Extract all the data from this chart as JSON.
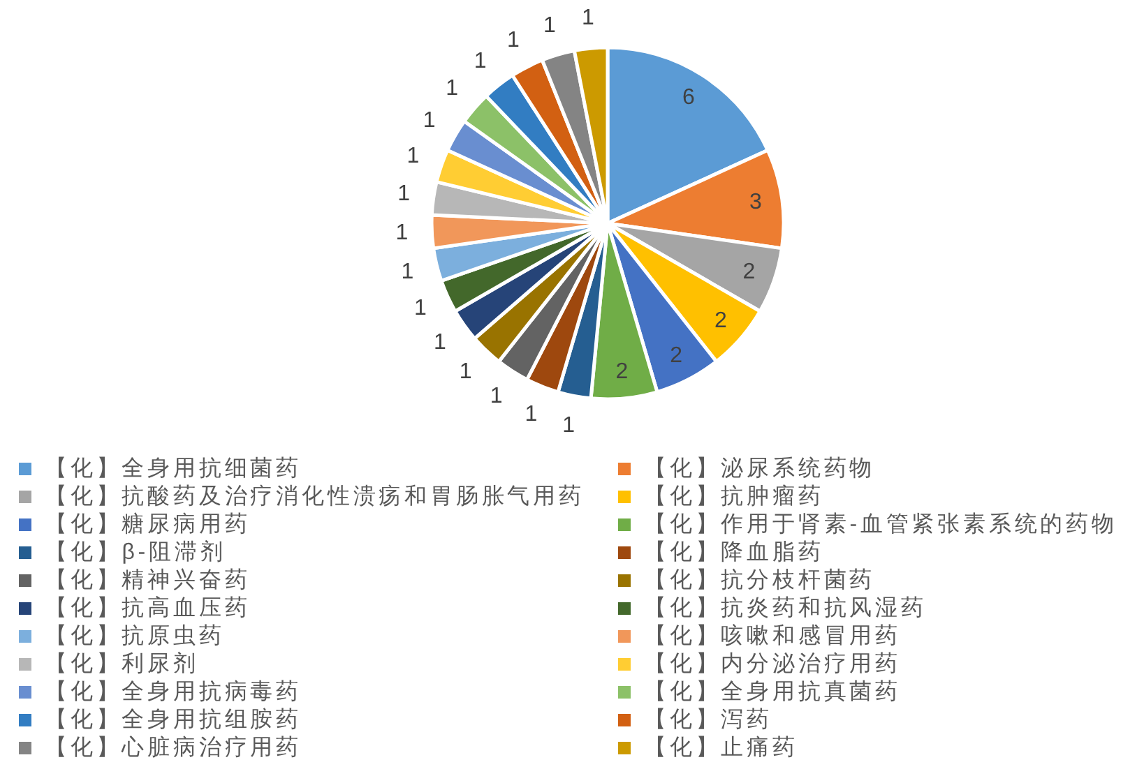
{
  "chart_data": {
    "type": "pie",
    "categories": [
      "【化】全身用抗细菌药",
      "【化】泌尿系统药物",
      "【化】抗酸药及治疗消化性溃疡和胃肠胀气用药",
      "【化】抗肿瘤药",
      "【化】糖尿病用药",
      "【化】作用于肾素-血管紧张素系统的药物",
      "【化】β-阻滞剂",
      "【化】降血脂药",
      "【化】精神兴奋药",
      "【化】抗分枝杆菌药",
      "【化】抗高血压药",
      "【化】抗炎药和抗风湿药",
      "【化】抗原虫药",
      "【化】咳嗽和感冒用药",
      "【化】利尿剂",
      "【化】内分泌治疗用药",
      "【化】全身用抗病毒药",
      "【化】全身用抗真菌药",
      "【化】全身用抗组胺药",
      "【化】泻药",
      "【化】心脏病治疗用药",
      "【化】止痛药"
    ],
    "values": [
      6,
      3,
      2,
      2,
      2,
      2,
      1,
      1,
      1,
      1,
      1,
      1,
      1,
      1,
      1,
      1,
      1,
      1,
      1,
      1,
      1,
      1
    ],
    "colors": [
      "#5b9bd5",
      "#ed7d31",
      "#a5a5a5",
      "#ffc000",
      "#4472c4",
      "#70ad47",
      "#255e91",
      "#9e480e",
      "#636363",
      "#997300",
      "#264478",
      "#43682b",
      "#7cafdd",
      "#f1975a",
      "#b7b7b7",
      "#ffcd33",
      "#698ed0",
      "#8cc168",
      "#327dc2",
      "#d26012",
      "#848484",
      "#cc9a00"
    ],
    "data_labels": true,
    "legend": "bottom"
  }
}
